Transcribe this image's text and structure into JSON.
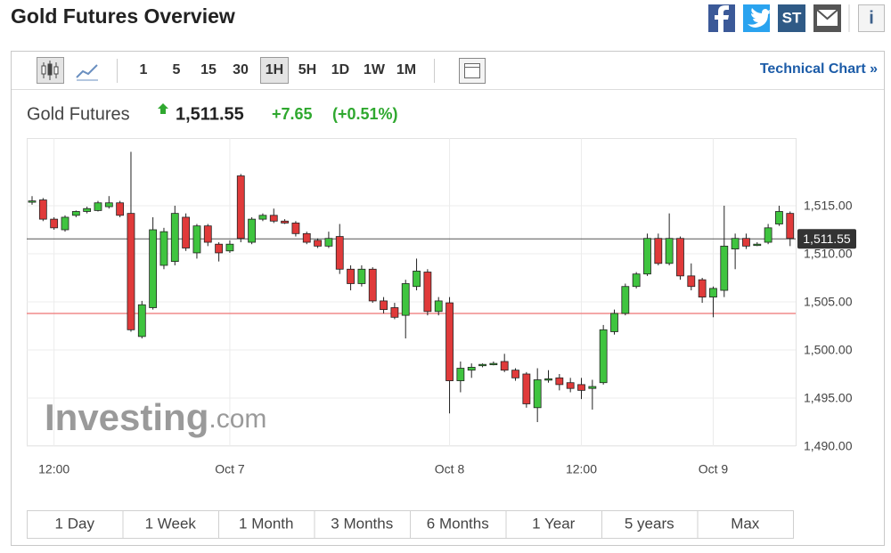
{
  "header": {
    "title": "Gold Futures Overview",
    "icons": [
      "ST",
      "i"
    ]
  },
  "toolbar": {
    "intervals": [
      "1",
      "5",
      "15",
      "30",
      "1H",
      "5H",
      "1D",
      "1W",
      "1M"
    ],
    "active_interval": "1H",
    "link": "Technical Chart »"
  },
  "quote": {
    "name": "Gold Futures",
    "price": "1,511.55",
    "change": "+7.65",
    "change_percent": "(+0.51%)"
  },
  "chart_data": {
    "type": "candlestick",
    "categories": [
      null,
      null,
      "12:00",
      null,
      null,
      null,
      null,
      null,
      null,
      null,
      null,
      null,
      null,
      null,
      null,
      null,
      null,
      null,
      "Oct 7",
      null,
      null,
      null,
      null,
      null,
      null,
      null,
      null,
      null,
      null,
      null,
      null,
      null,
      null,
      null,
      null,
      null,
      null,
      null,
      "Oct 8",
      null,
      null,
      null,
      null,
      null,
      null,
      null,
      null,
      null,
      null,
      null,
      "12:00",
      null,
      null,
      null,
      null,
      null,
      null,
      null,
      null,
      null,
      null,
      null,
      "Oct 9",
      null,
      null,
      null,
      null,
      null,
      null,
      null
    ],
    "open": [
      1515.4,
      1515.6,
      1513.6,
      1512.5,
      1514.0,
      1514.4,
      1514.5,
      1514.9,
      1515.3,
      1514.2,
      1501.4,
      1504.4,
      1508.8,
      1509.2,
      1513.8,
      1510.1,
      1512.9,
      1511.0,
      1510.3,
      1518.1,
      1511.2,
      1513.6,
      1514.0,
      1513.4,
      1513.2,
      1512.1,
      1511.4,
      1510.8,
      1511.8,
      1508.4,
      1506.9,
      1508.4,
      1505.1,
      1504.4,
      1503.6,
      1506.6,
      1508.1,
      1504.0,
      1504.9,
      1496.8,
      1497.9,
      1498.4,
      1498.6,
      1498.8,
      1497.9,
      1497.5,
      1494.0,
      1496.9,
      1497.1,
      1496.6,
      1496.4,
      1496.0,
      1496.6,
      1501.9,
      1503.8,
      1506.6,
      1507.9,
      1511.6,
      1509.0,
      1511.6,
      1507.7,
      1507.3,
      1505.5,
      1506.2,
      1510.5,
      1511.6,
      1511.0,
      1511.2,
      1513.1,
      1514.2
    ],
    "high": [
      1516.0,
      1515.8,
      1513.8,
      1514.0,
      1514.5,
      1514.9,
      1515.5,
      1516.0,
      1515.5,
      1520.6,
      1505.1,
      1513.8,
      1512.7,
      1515.0,
      1514.2,
      1513.1,
      1513.1,
      1511.2,
      1511.4,
      1518.3,
      1513.8,
      1514.2,
      1514.7,
      1513.6,
      1513.4,
      1512.3,
      1511.6,
      1512.3,
      1513.1,
      1508.8,
      1508.8,
      1508.6,
      1505.5,
      1504.9,
      1507.3,
      1509.5,
      1508.4,
      1505.5,
      1505.5,
      1498.8,
      1498.6,
      1498.6,
      1498.8,
      1499.6,
      1498.1,
      1497.7,
      1498.1,
      1497.9,
      1497.5,
      1497.1,
      1497.1,
      1496.9,
      1502.6,
      1504.2,
      1506.9,
      1508.1,
      1512.1,
      1512.1,
      1514.2,
      1511.8,
      1509.0,
      1507.5,
      1506.6,
      1515.0,
      1512.1,
      1512.1,
      1511.2,
      1513.1,
      1515.0,
      1514.4
    ],
    "low": [
      1515.1,
      1513.4,
      1512.5,
      1512.3,
      1513.8,
      1514.2,
      1514.4,
      1514.7,
      1513.8,
      1501.9,
      1501.2,
      1504.2,
      1508.4,
      1508.8,
      1510.3,
      1509.5,
      1510.8,
      1509.2,
      1510.1,
      1511.2,
      1511.0,
      1513.4,
      1513.2,
      1513.1,
      1511.8,
      1511.0,
      1510.6,
      1510.6,
      1507.9,
      1506.2,
      1506.6,
      1504.9,
      1503.8,
      1503.2,
      1501.2,
      1506.2,
      1503.6,
      1503.6,
      1493.4,
      1495.6,
      1497.1,
      1498.2,
      1498.4,
      1497.7,
      1496.8,
      1494.0,
      1492.5,
      1496.6,
      1495.8,
      1495.6,
      1494.9,
      1493.8,
      1496.4,
      1501.6,
      1503.6,
      1506.4,
      1507.7,
      1508.8,
      1508.8,
      1507.3,
      1506.2,
      1504.9,
      1503.4,
      1505.5,
      1508.4,
      1510.5,
      1510.8,
      1511.0,
      1512.9,
      1510.8
    ],
    "close": [
      1515.5,
      1513.6,
      1512.7,
      1513.8,
      1514.4,
      1514.7,
      1515.3,
      1515.3,
      1514.0,
      1502.1,
      1504.7,
      1512.5,
      1512.3,
      1514.2,
      1510.6,
      1512.9,
      1511.2,
      1510.1,
      1511.0,
      1511.6,
      1513.6,
      1514.0,
      1513.4,
      1513.2,
      1512.1,
      1511.2,
      1510.8,
      1511.6,
      1508.4,
      1506.9,
      1508.4,
      1505.1,
      1504.2,
      1503.4,
      1506.9,
      1508.2,
      1504.0,
      1505.1,
      1496.8,
      1498.1,
      1498.2,
      1498.5,
      1498.6,
      1497.9,
      1497.1,
      1494.4,
      1496.9,
      1497.0,
      1496.4,
      1496.0,
      1495.8,
      1496.2,
      1502.1,
      1503.8,
      1506.6,
      1507.9,
      1511.6,
      1509.0,
      1511.6,
      1507.7,
      1506.6,
      1505.5,
      1506.4,
      1510.8,
      1511.6,
      1510.8,
      1511.0,
      1512.7,
      1514.4,
      1511.6
    ],
    "up_color": "#3fc43f",
    "down_color": "#e03a3a",
    "ylim": [
      1490,
      1522
    ],
    "yticks": [
      {
        "value": 1490,
        "label": "1,490.00"
      },
      {
        "value": 1495,
        "label": "1,495.00"
      },
      {
        "value": 1500,
        "label": "1,500.00"
      },
      {
        "value": 1505,
        "label": "1,505.00"
      },
      {
        "value": 1510,
        "label": "1,510.00"
      },
      {
        "value": 1515,
        "label": "1,515.00"
      }
    ],
    "grid": true,
    "last_price": {
      "value": 1511.55,
      "label": "1,511.55"
    },
    "reference_line": {
      "value": 1503.8,
      "color": "#f08a8a"
    },
    "watermark": "Investing",
    "watermark_suffix": ".com"
  },
  "ranges": [
    "1 Day",
    "1 Week",
    "1 Month",
    "3 Months",
    "6 Months",
    "1 Year",
    "5 years",
    "Max"
  ]
}
